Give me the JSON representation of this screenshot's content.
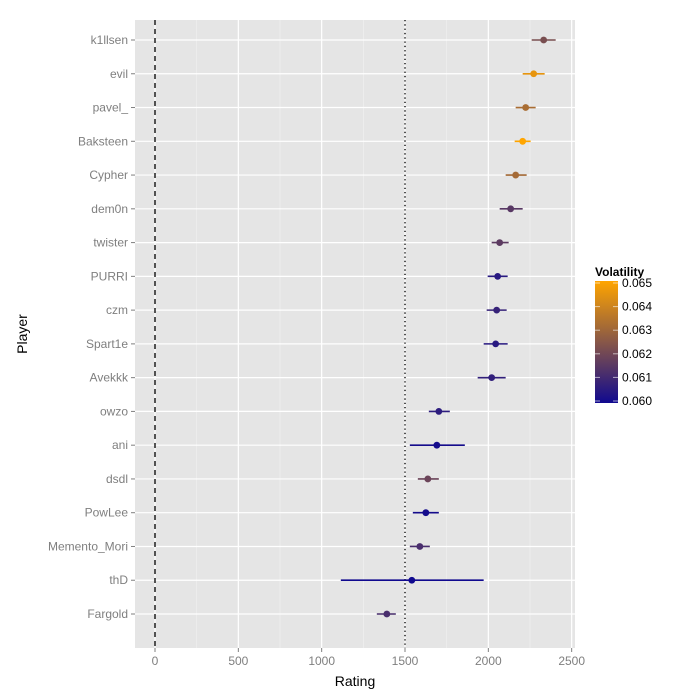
{
  "chart_data": {
    "type": "scatter",
    "subtype": "point-range (dot with horizontal error bars)",
    "title": "",
    "xlabel": "Rating",
    "ylabel": "Player",
    "xlim": [
      -120,
      2520
    ],
    "x_ticks": [
      0,
      500,
      1000,
      1500,
      2000,
      2500
    ],
    "x_tick_labels": [
      "0",
      "500",
      "1000",
      "1500",
      "2000",
      "2500"
    ],
    "grid": true,
    "reference_lines": [
      {
        "name": "zero-line",
        "x": 0,
        "style": "dashed",
        "color": "#000000"
      },
      {
        "name": "default-rating-line",
        "x": 1500,
        "style": "dotted",
        "color": "#000000"
      }
    ],
    "categories": [
      "k1llsen",
      "evil",
      "pavel_",
      "Baksteen",
      "Cypher",
      "dem0n",
      "twister",
      "PURRI",
      "czm",
      "Spart1e",
      "Avekkk",
      "owzo",
      "ani",
      "dsdl",
      "PowLee",
      "Memento_Mori",
      "thD",
      "Fargold"
    ],
    "points": [
      {
        "player": "k1llsen",
        "rating": 2332,
        "low": 2260,
        "high": 2404,
        "volatility": 0.0622
      },
      {
        "player": "evil",
        "rating": 2272,
        "low": 2206,
        "high": 2338,
        "volatility": 0.0645
      },
      {
        "player": "pavel_",
        "rating": 2224,
        "low": 2164,
        "high": 2284,
        "volatility": 0.0632
      },
      {
        "player": "Baksteen",
        "rating": 2206,
        "low": 2158,
        "high": 2254,
        "volatility": 0.065
      },
      {
        "player": "Cypher",
        "rating": 2164,
        "low": 2104,
        "high": 2230,
        "volatility": 0.0631
      },
      {
        "player": "dem0n",
        "rating": 2134,
        "low": 2068,
        "high": 2206,
        "volatility": 0.0615
      },
      {
        "player": "twister",
        "rating": 2068,
        "low": 2020,
        "high": 2122,
        "volatility": 0.0616
      },
      {
        "player": "PURRI",
        "rating": 2056,
        "low": 1996,
        "high": 2116,
        "volatility": 0.0605
      },
      {
        "player": "czm",
        "rating": 2050,
        "low": 1990,
        "high": 2110,
        "volatility": 0.0608
      },
      {
        "player": "Spart1e",
        "rating": 2044,
        "low": 1972,
        "high": 2116,
        "volatility": 0.0605
      },
      {
        "player": "Avekkk",
        "rating": 2020,
        "low": 1936,
        "high": 2104,
        "volatility": 0.0607
      },
      {
        "player": "owzo",
        "rating": 1703,
        "low": 1643,
        "high": 1769,
        "volatility": 0.0606
      },
      {
        "player": "ani",
        "rating": 1691,
        "low": 1529,
        "high": 1859,
        "volatility": 0.0601
      },
      {
        "player": "dsdl",
        "rating": 1637,
        "low": 1577,
        "high": 1703,
        "volatility": 0.0619
      },
      {
        "player": "PowLee",
        "rating": 1625,
        "low": 1547,
        "high": 1703,
        "volatility": 0.0601
      },
      {
        "player": "Memento_Mori",
        "rating": 1589,
        "low": 1529,
        "high": 1649,
        "volatility": 0.0612
      },
      {
        "player": "thD",
        "rating": 1541,
        "low": 1115,
        "high": 1972,
        "volatility": 0.06
      },
      {
        "player": "Fargold",
        "rating": 1391,
        "low": 1331,
        "high": 1445,
        "volatility": 0.0612
      }
    ],
    "color_scale": {
      "title": "Volatility",
      "low_value": 0.06,
      "high_value": 0.065,
      "low_color": "#10098f",
      "high_color": "#ffa500",
      "breaks": [
        0.065,
        0.064,
        0.063,
        0.062,
        0.061,
        0.06
      ],
      "break_labels": [
        "0.065",
        "0.064",
        "0.063",
        "0.062",
        "0.061",
        "0.060"
      ],
      "legend_position": "right"
    }
  }
}
